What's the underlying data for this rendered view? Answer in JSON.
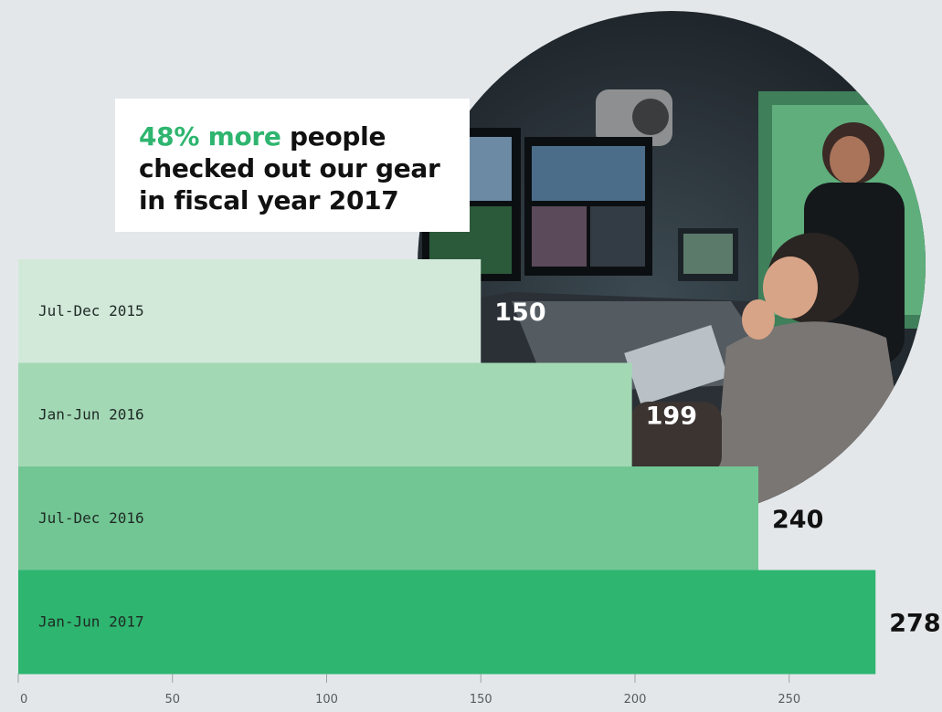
{
  "headline": {
    "highlight": "48% more",
    "rest": " people checked out our gear in fiscal year 2017"
  },
  "chart_data": {
    "type": "bar",
    "orientation": "horizontal",
    "title": "48% more people checked out our gear in fiscal year 2017",
    "categories": [
      "Jul-Dec 2015",
      "Jan-Jun 2016",
      "Jul-Dec 2016",
      "Jan-Jun 2017"
    ],
    "values": [
      150,
      199,
      240,
      278
    ],
    "data_labels": [
      "150",
      "199",
      "240",
      "278"
    ],
    "xlim": [
      0,
      278
    ],
    "xticks": [
      0,
      50,
      100,
      150,
      200,
      250
    ],
    "xtick_labels": [
      "0",
      "50",
      "100",
      "150",
      "200",
      "250"
    ],
    "grid": false,
    "legend": "none",
    "colors": [
      "#d2e9da",
      "#a3d8b5",
      "#72c694",
      "#2eb56f"
    ],
    "label_colors": [
      "#ffffff",
      "#ffffff",
      "#111111",
      "#111111"
    ]
  },
  "colors": {
    "background": "#e3e7ea",
    "accent": "#2eb56f"
  }
}
